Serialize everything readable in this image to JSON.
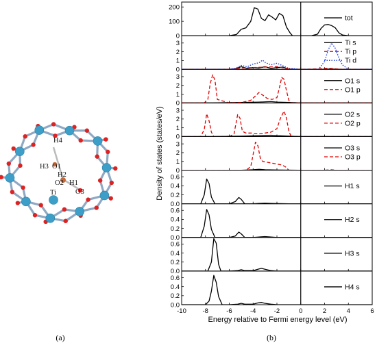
{
  "figure": {
    "caption_a": "(a)",
    "caption_b": "(b)"
  },
  "structure": {
    "atom_labels": [
      "H4",
      "H3",
      "O1",
      "H2",
      "O2",
      "H1",
      "Ti",
      "O3"
    ],
    "colors": {
      "ti": "#3d9fc7",
      "o": "#dd2222",
      "h": "#bbbbbb",
      "bond": "#8fa9c4"
    }
  },
  "chart_data": {
    "type": "line",
    "xlabel": "Energy relative to Fermi energy level (eV)",
    "ylabel": "Density of states (states/eV)",
    "xlim": [
      -10,
      6
    ],
    "xticks": [
      -10,
      -8,
      -6,
      -4,
      -2,
      0,
      2,
      4,
      6
    ],
    "fermi_level": 0,
    "panels": [
      {
        "ylim": [
          0,
          220
        ],
        "yticks": [
          0,
          100,
          200
        ],
        "series": [
          {
            "name": "tot",
            "color": "#000000",
            "dash": "solid",
            "x": [
              -10,
              -6,
              -5.4,
              -5,
              -4.6,
              -4.2,
              -3.9,
              -3.6,
              -3.3,
              -3,
              -2.7,
              -2.4,
              -2.1,
              -1.8,
              -1.5,
              -1.2,
              -0.9,
              -0.7,
              0.9,
              1.4,
              1.7,
              2,
              2.3,
              2.6,
              2.9,
              3.2,
              3.5,
              4,
              6
            ],
            "y": [
              0,
              0,
              8,
              45,
              55,
              100,
              195,
              185,
              120,
              105,
              145,
              130,
              110,
              155,
              140,
              60,
              20,
              0,
              0,
              10,
              50,
              75,
              78,
              70,
              55,
              20,
              5,
              0,
              0
            ]
          }
        ]
      },
      {
        "ylim": [
          0,
          3.6
        ],
        "yticks": [
          0,
          1,
          2,
          3
        ],
        "series": [
          {
            "name": "Ti s",
            "color": "#000000",
            "dash": "solid",
            "x": [
              -10,
              -6,
              -5.5,
              -5,
              -4.5,
              -4,
              -3.5,
              -3,
              -2.5,
              -2,
              -1.5,
              -1,
              0,
              1,
              2,
              2.5,
              3,
              6
            ],
            "y": [
              0,
              0,
              0.05,
              0.3,
              0.1,
              0.2,
              0.15,
              0.3,
              0.1,
              0.2,
              0.25,
              0,
              0,
              0,
              0,
              0.05,
              0,
              0
            ]
          },
          {
            "name": "Ti p",
            "color": "#e00000",
            "dash": "dash",
            "x": [
              -10,
              -6,
              -5,
              -4,
              -3,
              -2,
              -1,
              0,
              1.5,
              2,
              2.5,
              3,
              3.5,
              6
            ],
            "y": [
              0,
              0,
              0.15,
              0.2,
              0.25,
              0.3,
              0.05,
              0,
              0.05,
              0.1,
              0.1,
              0.05,
              0,
              0
            ]
          },
          {
            "name": "Ti d",
            "color": "#1030e0",
            "dash": "dot",
            "x": [
              -10,
              -6,
              -5.5,
              -5,
              -4.5,
              -4,
              -3.5,
              -3.2,
              -3,
              -2.5,
              -2,
              -1.5,
              -1,
              0,
              1.5,
              2,
              2.3,
              2.6,
              2.9,
              3.2,
              3.5,
              4,
              6
            ],
            "y": [
              0,
              0,
              0.1,
              0.45,
              0.3,
              0.6,
              0.75,
              1.05,
              0.8,
              0.5,
              0.7,
              0.4,
              0.1,
              0,
              0,
              0.9,
              2.2,
              3.0,
              2.4,
              1.3,
              0.5,
              0,
              0
            ]
          }
        ]
      },
      {
        "ylim": [
          0,
          3.6
        ],
        "yticks": [
          0,
          1,
          2,
          3
        ],
        "series": [
          {
            "name": "O1 s",
            "color": "#000000",
            "dash": "solid",
            "x": [
              -10,
              -7.5,
              -5,
              -3.5,
              -2.5,
              -2,
              -1,
              0,
              6
            ],
            "y": [
              0,
              0,
              0.05,
              0.1,
              0.15,
              0.1,
              0.05,
              0,
              0
            ]
          },
          {
            "name": "O1 p",
            "color": "#e00000",
            "dash": "dash",
            "x": [
              -10,
              -8.1,
              -7.8,
              -7.6,
              -7.4,
              -7.2,
              -7,
              -6,
              -5,
              -4.2,
              -3.8,
              -3.5,
              -3.2,
              -2.8,
              -2.4,
              -2,
              -1.8,
              -1.6,
              -1.4,
              -1.2,
              -1,
              -0.8,
              0,
              6
            ],
            "y": [
              0,
              0,
              0.4,
              2.2,
              3.2,
              2.6,
              0.4,
              0,
              0.05,
              0.3,
              0.8,
              1.2,
              0.9,
              0.5,
              0.4,
              0.6,
              1.7,
              2.9,
              2.7,
              1.4,
              0.3,
              0,
              0,
              0
            ]
          }
        ]
      },
      {
        "ylim": [
          0,
          3.6
        ],
        "yticks": [
          0,
          1,
          2,
          3
        ],
        "series": [
          {
            "name": "O2 s",
            "color": "#000000",
            "dash": "solid",
            "x": [
              -10,
              -7.5,
              -5,
              -3.5,
              -2.5,
              -2,
              -1,
              0,
              6
            ],
            "y": [
              0,
              0,
              0.05,
              0.1,
              0.15,
              0.1,
              0.05,
              0,
              0
            ]
          },
          {
            "name": "O2 p",
            "color": "#e00000",
            "dash": "dash",
            "x": [
              -10,
              -8.4,
              -8.1,
              -7.9,
              -7.7,
              -7.5,
              -7.3,
              -6,
              -5.6,
              -5.3,
              -5.1,
              -4.9,
              -4.6,
              -4,
              -3.5,
              -3,
              -2.5,
              -2,
              -1.7,
              -1.4,
              -1.2,
              -1,
              -0.8,
              0,
              6
            ],
            "y": [
              0,
              0,
              0.8,
              2.6,
              1.8,
              0.5,
              0,
              0,
              0.3,
              2.5,
              2.1,
              0.6,
              0.4,
              0.4,
              0.3,
              0.4,
              0.5,
              0.9,
              2.1,
              2.9,
              2.1,
              0.6,
              0,
              0,
              0
            ]
          }
        ]
      },
      {
        "ylim": [
          0,
          3.6
        ],
        "yticks": [
          0,
          1,
          2,
          3
        ],
        "series": [
          {
            "name": "O3 s",
            "color": "#000000",
            "dash": "solid",
            "x": [
              -10,
              -5,
              -4,
              -3.5,
              -3,
              -2,
              0,
              6
            ],
            "y": [
              0,
              0,
              0.05,
              0.1,
              0.05,
              0.02,
              0,
              0
            ]
          },
          {
            "name": "O3 p",
            "color": "#e00000",
            "dash": "dash",
            "x": [
              -10,
              -6,
              -4.6,
              -4.2,
              -4,
              -3.8,
              -3.6,
              -3.4,
              -3.2,
              -2.8,
              -2.4,
              -2,
              -1.6,
              -1.3,
              -1,
              0,
              2,
              2.5,
              3,
              6
            ],
            "y": [
              0,
              0,
              0,
              0.4,
              1.8,
              3.2,
              2.8,
              1.4,
              1.0,
              0.9,
              0.8,
              0.7,
              0.6,
              0.4,
              0,
              0,
              0,
              0.05,
              0,
              0
            ]
          }
        ]
      },
      {
        "ylim": [
          0,
          0.7
        ],
        "yticks": [
          0.0,
          0.2,
          0.4,
          0.6
        ],
        "series": [
          {
            "name": "H1 s",
            "color": "#000000",
            "dash": "solid",
            "x": [
              -10,
              -8.4,
              -8.1,
              -7.9,
              -7.7,
              -7.5,
              -7.2,
              -6,
              -5.5,
              -5.2,
              -5,
              -4.7,
              -4,
              -3.5,
              -3,
              -2.5,
              -2,
              -1,
              0,
              6
            ],
            "y": [
              0,
              0,
              0.2,
              0.55,
              0.45,
              0.15,
              0,
              0,
              0.05,
              0.14,
              0.1,
              0,
              0,
              0.01,
              0.015,
              0.01,
              0.005,
              0,
              0,
              0
            ]
          }
        ]
      },
      {
        "ylim": [
          0,
          0.7
        ],
        "yticks": [
          0.0,
          0.2,
          0.4,
          0.6
        ],
        "series": [
          {
            "name": "H2 s",
            "color": "#000000",
            "dash": "solid",
            "x": [
              -10,
              -8.4,
              -8.1,
              -7.9,
              -7.7,
              -7.5,
              -7.2,
              -6,
              -5.5,
              -5.2,
              -5,
              -4.7,
              -4,
              -3.5,
              -3,
              -2.5,
              -2,
              -1,
              0,
              6
            ],
            "y": [
              0,
              0,
              0.25,
              0.62,
              0.5,
              0.18,
              0,
              0,
              0.03,
              0.12,
              0.08,
              0,
              0,
              0.01,
              0.02,
              0.01,
              0,
              0,
              0,
              0
            ]
          }
        ]
      },
      {
        "ylim": [
          0,
          0.7
        ],
        "yticks": [
          0.0,
          0.2,
          0.4,
          0.6
        ],
        "series": [
          {
            "name": "H3 s",
            "color": "#000000",
            "dash": "solid",
            "x": [
              -10,
              -7.8,
              -7.5,
              -7.3,
              -7.1,
              -6.9,
              -6.7,
              -6,
              -5.3,
              -5,
              -4.7,
              -4,
              -3.6,
              -3.3,
              -3,
              -2.5,
              -2,
              0,
              6
            ],
            "y": [
              0,
              0,
              0.2,
              0.72,
              0.62,
              0.15,
              0,
              0,
              0.01,
              0.03,
              0.01,
              0.01,
              0.04,
              0.06,
              0.04,
              0.01,
              0,
              0,
              0
            ]
          }
        ]
      },
      {
        "ylim": [
          0,
          0.7
        ],
        "yticks": [
          0.0,
          0.2,
          0.4,
          0.6
        ],
        "series": [
          {
            "name": "H4 s",
            "color": "#000000",
            "dash": "solid",
            "x": [
              -10,
              -8,
              -7.7,
              -7.5,
              -7.3,
              -7.1,
              -6.9,
              -6.6,
              -6,
              -5.3,
              -5,
              -4.7,
              -4,
              -3.6,
              -3.3,
              -3,
              -2.5,
              -2,
              0,
              6
            ],
            "y": [
              0,
              0,
              0.08,
              0.3,
              0.65,
              0.5,
              0.18,
              0,
              0,
              0.01,
              0.03,
              0.01,
              0.01,
              0.04,
              0.05,
              0.03,
              0.01,
              0,
              0,
              0
            ]
          }
        ]
      }
    ]
  }
}
